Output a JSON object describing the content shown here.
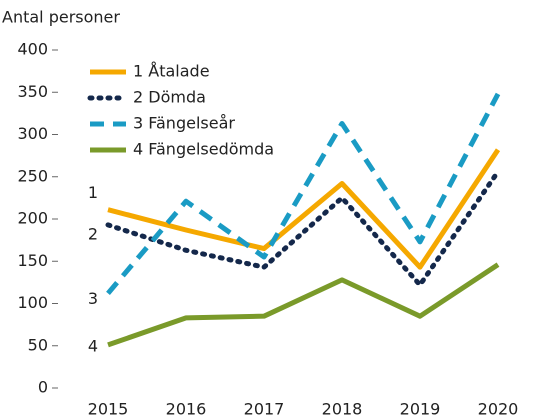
{
  "chart_data": {
    "type": "line",
    "y_label": "Antal personer",
    "categories": [
      "2015",
      "2016",
      "2017",
      "2018",
      "2019",
      "2020"
    ],
    "series": [
      {
        "name": "1 Åtalade",
        "color": "#f5a800",
        "dash": "solid",
        "values": [
          211,
          187,
          165,
          242,
          143,
          282
        ]
      },
      {
        "name": "2 Dömda",
        "color": "#14284b",
        "dash": "dotted",
        "values": [
          193,
          163,
          143,
          225,
          122,
          256
        ]
      },
      {
        "name": "3 Fängelseår",
        "color": "#1a9bc4",
        "dash": "dashed",
        "values": [
          112,
          221,
          155,
          313,
          173,
          348
        ]
      },
      {
        "name": "4 Fängelsedömda",
        "color": "#7a9a2a",
        "dash": "solid",
        "values": [
          51,
          83,
          85,
          128,
          85,
          146
        ]
      }
    ],
    "annotations": [
      "1",
      "2",
      "3",
      "4"
    ],
    "ylim": [
      0,
      400
    ],
    "yticks": [
      0,
      50,
      100,
      150,
      200,
      250,
      300,
      350,
      400
    ],
    "grid": false,
    "legend": "upper left"
  }
}
